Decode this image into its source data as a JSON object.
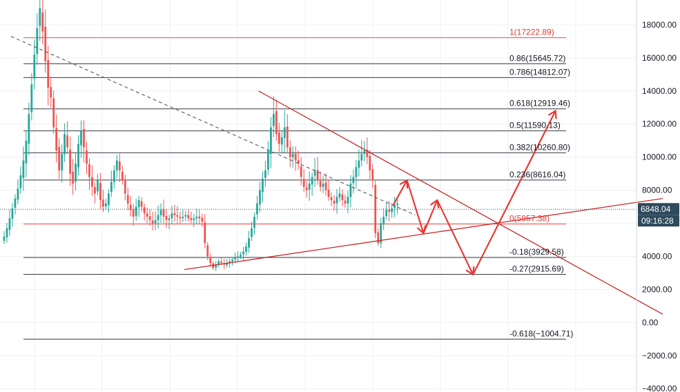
{
  "chart_data": {
    "type": "candlestick",
    "title": "",
    "xlabel": "",
    "ylabel": "",
    "ylim": [
      -4200,
      19500
    ],
    "y_ticks": [
      "18000.00",
      "16000.00",
      "14000.00",
      "12000.00",
      "10000.00",
      "8000.00",
      "6000.00",
      "4000.00",
      "2000.00",
      "0.00",
      "−2000.00",
      "−4000.00"
    ],
    "y_tick_values": [
      18000,
      16000,
      14000,
      12000,
      10000,
      8000,
      6000,
      4000,
      2000,
      0,
      -2000,
      -4000
    ],
    "grid": true,
    "current_price": {
      "label": "6848.04",
      "value": 6848.04
    },
    "countdown": "09:16:28",
    "colors": {
      "up": "#26a69a",
      "down": "#ef5350",
      "trend": "#c62828",
      "fib": "#131722",
      "fib_top": "#e53935",
      "badge": "#2e4a5c"
    },
    "fib_levels": [
      {
        "label": "1(17222.89)",
        "value": 17222.89,
        "accent": true
      },
      {
        "label": "0.86(15645.72)",
        "value": 15645.72
      },
      {
        "label": "0.786(14812.07)",
        "value": 14812.07
      },
      {
        "label": "0.618(12919.46)",
        "value": 12919.46
      },
      {
        "label": "0.5(11590.13)",
        "value": 11590.13
      },
      {
        "label": "0.382(10260.80)",
        "value": 10260.8
      },
      {
        "label": "0.236(8616.04)",
        "value": 8616.04
      },
      {
        "label": "0(5957.38)",
        "value": 5957.38,
        "accent": true
      },
      {
        "label": "-0.18(3929.58)",
        "value": 3929.58
      },
      {
        "label": "-0.27(2915.69)",
        "value": 2915.69
      },
      {
        "label": "-0.618(−1004.71)",
        "value": -1004.71
      }
    ],
    "series": [
      {
        "values": [
          5200,
          5700,
          6300,
          6900,
          7500,
          8100,
          8900,
          9800,
          11000,
          12600,
          14400,
          16200,
          17800,
          19000,
          17600,
          15800,
          14200,
          13600,
          11800,
          10400,
          9200,
          10200,
          11400,
          10600,
          9000,
          8400,
          9600,
          10800,
          11600,
          10600,
          9600,
          8800,
          8200,
          7800,
          8600,
          7400,
          7000,
          7200,
          7800,
          8500,
          9200,
          9800,
          9200,
          8600,
          7800,
          7200,
          6800,
          6400,
          7000,
          7400,
          7000,
          6600,
          6400,
          6200,
          6000,
          6200,
          6500,
          6800,
          6400,
          6200,
          6300,
          6600,
          6500,
          6400,
          6300,
          6400,
          6500,
          6300,
          6200,
          6300,
          6400,
          6300,
          6100,
          4800,
          4000,
          3600,
          3300,
          3500,
          3700,
          3600,
          3500,
          3600,
          3700,
          3800,
          3900,
          4000,
          4100,
          4300,
          4600,
          5100,
          5700,
          6400,
          7200,
          8000,
          8700,
          9200,
          10400,
          11800,
          12600,
          11400,
          10800,
          11200,
          11800,
          10600,
          10000,
          10200,
          9800,
          9600,
          8800,
          8200,
          8000,
          8400,
          8800,
          9200,
          8600,
          8200,
          8400,
          8000,
          7600,
          7400,
          7200,
          7600,
          7800,
          7400,
          7200,
          7600,
          8400,
          8800,
          9400,
          9800,
          10200,
          10400,
          10000,
          9200,
          8600,
          5400,
          4800,
          6000,
          6400,
          6800,
          6700,
          6900,
          7100,
          7200
        ]
      }
    ],
    "annotations": {
      "descending_dashed_trendline": {
        "start": {
          "candle": 3,
          "value": 17300
        },
        "end": {
          "candle": 150,
          "value": 6500
        }
      },
      "descending_trendline": {
        "start": {
          "candle": 93,
          "value": 14000
        },
        "end": {
          "candle": 240,
          "value": 500
        }
      },
      "ascending_support_line": {
        "start": {
          "candle": 66,
          "value": 3200
        },
        "end": {
          "candle": 240,
          "value": 7500
        }
      },
      "projection_path": [
        {
          "candle": 142,
          "value": 7100
        },
        {
          "candle": 147,
          "value": 8600
        },
        {
          "candle": 153,
          "value": 5400
        },
        {
          "candle": 158,
          "value": 7400
        },
        {
          "candle": 171,
          "value": 2900
        },
        {
          "candle": 201,
          "value": 12800
        }
      ]
    }
  }
}
